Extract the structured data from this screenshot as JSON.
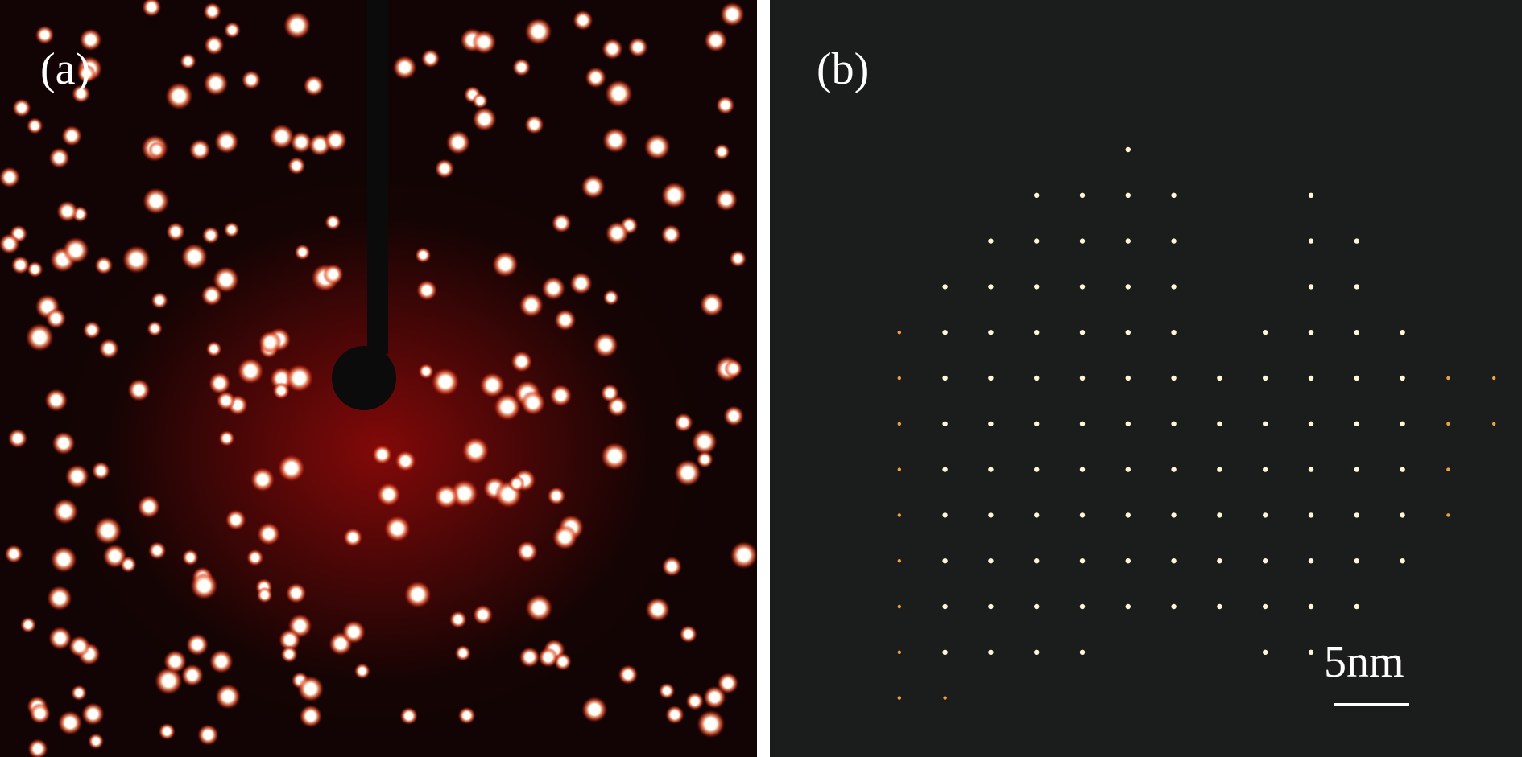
{
  "panel_a": {
    "label": "(a)"
  },
  "panel_b": {
    "label": "(b)",
    "scale_bar_text": "5nm"
  },
  "colors": {
    "panel_a_background": "#120404",
    "panel_a_glow": "#8a0a0a",
    "panel_b_background": "#1b1c1c",
    "spot_core": "#ffffff",
    "spot_halo": "#e85a2a",
    "divider": "#ffffff"
  }
}
